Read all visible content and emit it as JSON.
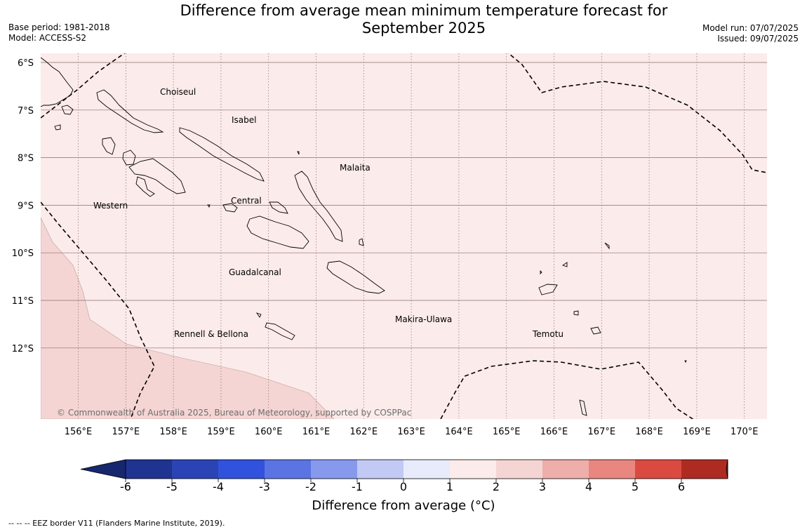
{
  "title": {
    "line1": "Difference from average mean minimum temperature forecast for",
    "line2": "September 2025"
  },
  "meta": {
    "base_period": "Base period: 1981-2018",
    "model": "Model: ACCESS-S2",
    "model_run": "Model run: 07/07/2025",
    "issued": "Issued: 09/07/2025"
  },
  "map": {
    "lat_labels": [
      "6°S",
      "7°S",
      "8°S",
      "9°S",
      "10°S",
      "11°S",
      "12°S"
    ],
    "lon_labels": [
      "156°E",
      "157°E",
      "158°E",
      "159°E",
      "160°E",
      "161°E",
      "162°E",
      "163°E",
      "164°E",
      "165°E",
      "166°E",
      "167°E",
      "168°E",
      "169°E",
      "170°E"
    ],
    "regions": {
      "choiseul": "Choiseul",
      "isabel": "Isabel",
      "malaita": "Malaita",
      "western": "Western",
      "central": "Central",
      "guadalcanal": "Guadalcanal",
      "makira": "Makira-Ulawa",
      "temotu": "Temotu",
      "rennell": "Rennell & Bellona"
    },
    "copyright": "© Commonwealth of Australia 2025, Bureau of Meteorology, supported by COSPPac",
    "colors": {
      "band_0_1": "#fbebea",
      "band_1_2": "#f5d5d3",
      "ocean_border": "#000000"
    }
  },
  "colorbar": {
    "ticks": [
      "-6",
      "-5",
      "-4",
      "-3",
      "-2",
      "-1",
      "0",
      "1",
      "2",
      "3",
      "4",
      "5",
      "6"
    ],
    "colors": [
      "#1f3390",
      "#2a44b6",
      "#3052dc",
      "#5b74e3",
      "#8799ec",
      "#c1c9f4",
      "#e8ebfb",
      "#fbebea",
      "#f5d5d3",
      "#eeaeaa",
      "#e8867f",
      "#db4a40",
      "#ae2b22"
    ],
    "low_extend_color": "#17276e",
    "high_extend_color": "#7d1f19",
    "label": "Difference from average (°C)"
  },
  "footer": "--  --  -- EEZ border V11 (Flanders Marine Institute, 2019)."
}
